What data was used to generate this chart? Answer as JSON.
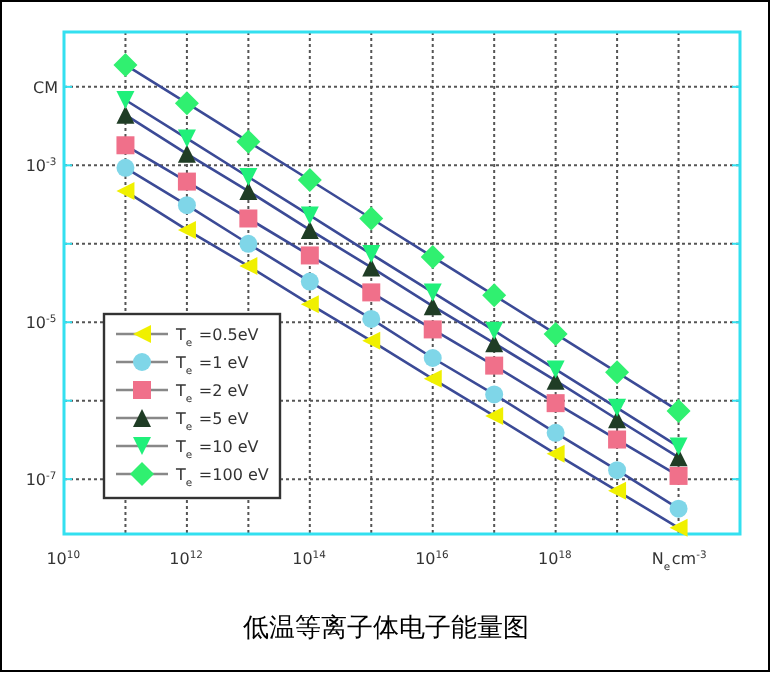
{
  "chart_data": {
    "type": "line",
    "title": "低温等离子体电子能量图",
    "log": "xy",
    "grid": true,
    "legend": "bottom left",
    "xlabel": "N$_{e}$cm$^{-3}$",
    "x": [
      100000000000.0,
      1000000000000.0,
      10000000000000.0,
      100000000000000.0,
      1000000000000000.0,
      1e+16,
      1e+17,
      1e+18,
      1e+19,
      1e+20
    ],
    "xlim": [
      10000000000.0,
      1e+21
    ],
    "ylim": [
      2e-08,
      0.05
    ],
    "xticks": [
      {
        "value": 10000000000.0,
        "label": "10$^{10}$"
      },
      {
        "value": 100000000000.0,
        "label": null
      },
      {
        "value": 1000000000000.0,
        "label": "10$^{12}$"
      },
      {
        "value": 10000000000000.0,
        "label": null
      },
      {
        "value": 100000000000000.0,
        "label": "10$^{14}$"
      },
      {
        "value": 1000000000000000.0,
        "label": null
      },
      {
        "value": 1e+16,
        "label": "10$^{16}$"
      },
      {
        "value": 1e+17,
        "label": null
      },
      {
        "value": 1e+18,
        "label": "10$^{18}$"
      },
      {
        "value": 1e+19,
        "label": null
      },
      {
        "value": 1e+20,
        "label": null
      }
    ],
    "yticks": [
      {
        "value": 0.01,
        "label": "CM"
      },
      {
        "value": 0.001,
        "label": "10$^{-3}$"
      },
      {
        "value": 0.0001,
        "label": null
      },
      {
        "value": 1e-05,
        "label": "10$^{-5}$"
      },
      {
        "value": 1e-06,
        "label": null
      },
      {
        "value": 1e-07,
        "label": "10$^{-7}$"
      }
    ],
    "series": [
      {
        "name": "T$_{e}$ =0.5eV",
        "color": "#f0f000",
        "marker": "triangle-left",
        "values": [
          0.00047,
          0.00015,
          5.2e-05,
          1.7e-05,
          5.8e-06,
          1.9e-06,
          6.4e-07,
          2.1e-07,
          7.1e-08,
          2.4e-08
        ]
      },
      {
        "name": "T$_{e}$ =1 eV",
        "color": "#7fd6e8",
        "marker": "circle",
        "values": [
          0.00093,
          0.00031,
          0.0001,
          3.3e-05,
          1.1e-05,
          3.5e-06,
          1.2e-06,
          3.9e-07,
          1.3e-07,
          4.2e-08
        ]
      },
      {
        "name": "T$_{e}$ =2 eV",
        "color": "#f0708a",
        "marker": "square",
        "values": [
          0.0018,
          0.00062,
          0.00021,
          7.1e-05,
          2.4e-05,
          8.1e-06,
          2.8e-06,
          9.3e-07,
          3.2e-07,
          1.1e-07
        ]
      },
      {
        "name": "T$_{e}$ =5 eV",
        "color": "#1f3d25",
        "marker": "triangle",
        "values": [
          0.0044,
          0.0014,
          0.00047,
          0.00015,
          5e-05,
          1.6e-05,
          5.4e-06,
          1.8e-06,
          5.8e-07,
          1.9e-07
        ]
      },
      {
        "name": "T$_{e}$ =10 eV",
        "color": "#20f07a",
        "marker": "triangle-down",
        "values": [
          0.0068,
          0.0022,
          0.00071,
          0.00023,
          7.4e-05,
          2.4e-05,
          7.8e-06,
          2.5e-06,
          8.1e-07,
          2.6e-07
        ]
      },
      {
        "name": "T$_{e}$ =100 eV",
        "color": "#30f070",
        "marker": "diamond",
        "values": [
          0.019,
          0.0062,
          0.002,
          0.00065,
          0.00021,
          6.8e-05,
          2.2e-05,
          7.1e-06,
          2.3e-06,
          7.4e-07
        ]
      }
    ]
  }
}
